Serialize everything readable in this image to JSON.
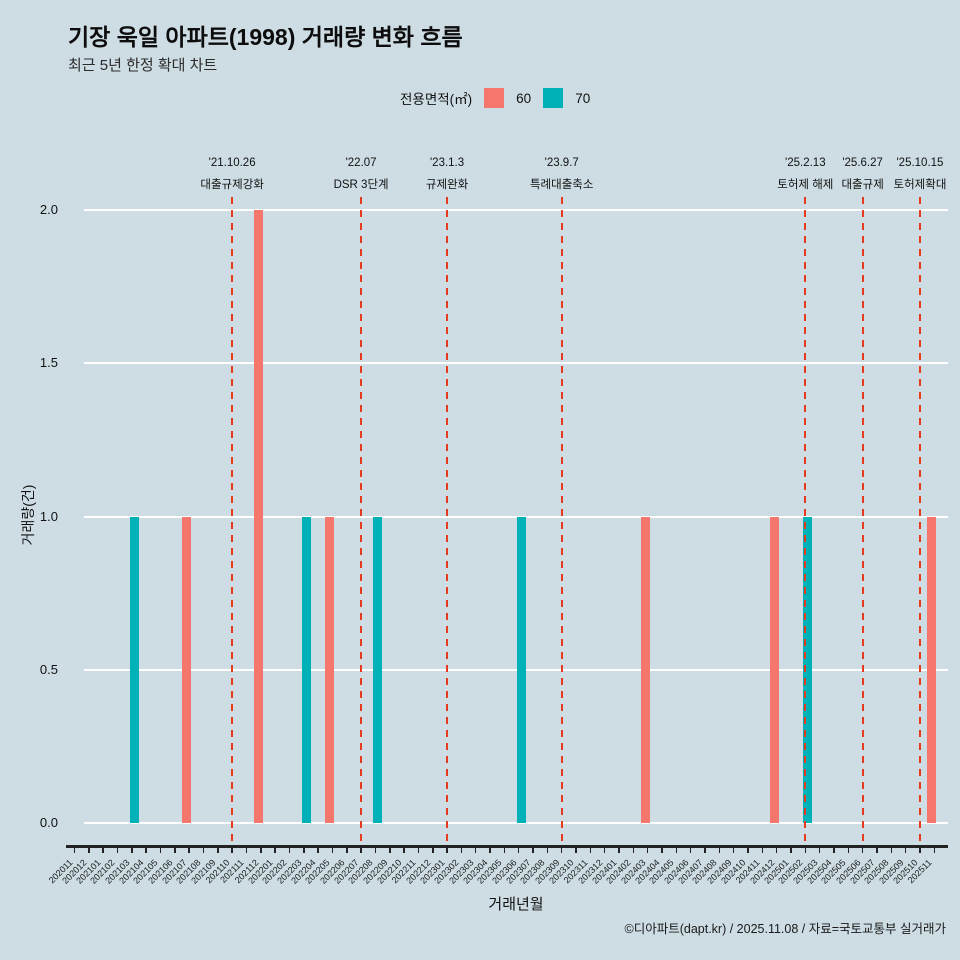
{
  "title": "기장 욱일 아파트(1998) 거래량 변화 흐름",
  "subtitle": "최근 5년 한정 확대 차트",
  "footer": "©디아파트(dapt.kr) / 2025.11.08 / 자료=국토교통부 실거래가",
  "legend": {
    "label": "전용면적(㎡)",
    "items": [
      {
        "label": "60",
        "color": "#f5766c"
      },
      {
        "label": "70",
        "color": "#00b2b8"
      }
    ]
  },
  "colors": {
    "background": "#cddde3",
    "gridline": "#ffffff",
    "annotation_line": "#e63a1f",
    "series_60": "#f5766c",
    "series_70": "#00b2b8"
  },
  "chart_data": {
    "type": "bar",
    "title": "기장 욱일 아파트(1998) 거래량 변화 흐름",
    "subtitle": "최근 5년 한정 확대 차트",
    "xlabel": "거래년월",
    "ylabel": "거래량(건)",
    "ylim": [
      0,
      2.0
    ],
    "yticks": [
      0.0,
      0.5,
      1.0,
      1.5,
      2.0
    ],
    "grid": "horizontal-white",
    "legend_position": "top-center",
    "categories": [
      "202011",
      "202012",
      "202101",
      "202102",
      "202103",
      "202104",
      "202105",
      "202106",
      "202107",
      "202108",
      "202109",
      "202110",
      "202111",
      "202112",
      "202201",
      "202202",
      "202203",
      "202204",
      "202205",
      "202206",
      "202207",
      "202208",
      "202209",
      "202210",
      "202211",
      "202212",
      "202301",
      "202302",
      "202303",
      "202304",
      "202305",
      "202306",
      "202307",
      "202308",
      "202309",
      "202310",
      "202311",
      "202312",
      "202401",
      "202402",
      "202403",
      "202404",
      "202405",
      "202406",
      "202407",
      "202408",
      "202409",
      "202410",
      "202411",
      "202412",
      "202501",
      "202502",
      "202503",
      "202504",
      "202505",
      "202506",
      "202507",
      "202508",
      "202509",
      "202510",
      "202511"
    ],
    "series": [
      {
        "name": "60",
        "color": "#f5766c",
        "points": {
          "202107": 1,
          "202112": 2,
          "202205": 1,
          "202403": 1,
          "202412": 1,
          "202511": 1
        }
      },
      {
        "name": "70",
        "color": "#00b2b8",
        "points": {
          "202103": 1,
          "202203": 1,
          "202208": 1,
          "202306": 1,
          "202502": 1
        }
      }
    ],
    "annotations": [
      {
        "month": "202110",
        "date": "'21.10.26",
        "label": "대출규제강화"
      },
      {
        "month": "202207",
        "date": "'22.07",
        "label": "DSR 3단계"
      },
      {
        "month": "202301",
        "date": "'23.1.3",
        "label": "규제완화"
      },
      {
        "month": "202309",
        "date": "'23.9.7",
        "label": "특례대출축소"
      },
      {
        "month": "202502",
        "date": "'25.2.13",
        "label": "토허제 해제"
      },
      {
        "month": "202506",
        "date": "'25.6.27",
        "label": "대출규제"
      },
      {
        "month": "202510",
        "date": "'25.10.15",
        "label": "토허제확대"
      }
    ]
  }
}
